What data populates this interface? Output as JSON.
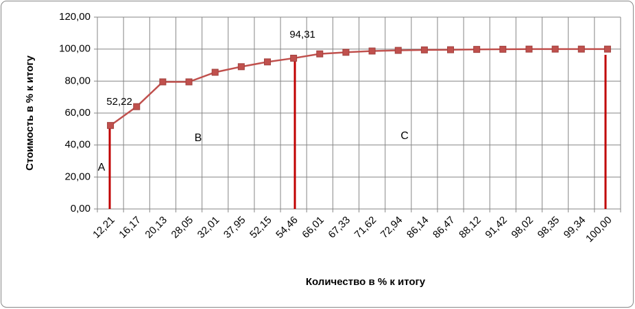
{
  "chart_data": {
    "type": "line",
    "x_label": "Количество в % к итогу",
    "y_label": "Стоимость в % к итогу",
    "categories": [
      "12,21",
      "16,17",
      "20,13",
      "28,05",
      "32,01",
      "37,95",
      "52,15",
      "54,46",
      "66,01",
      "67,33",
      "71,62",
      "72,94",
      "86,14",
      "86,47",
      "88,12",
      "91,42",
      "98,02",
      "98,35",
      "99,34",
      "100,00"
    ],
    "values": [
      52.22,
      64,
      79.5,
      79.5,
      85.5,
      89,
      92,
      94.31,
      97,
      98,
      98.8,
      99.2,
      99.5,
      99.6,
      99.8,
      99.9,
      100,
      100,
      100,
      100
    ],
    "value_labels": [
      "52,22",
      null,
      null,
      null,
      null,
      null,
      null,
      "94,31",
      null,
      null,
      null,
      null,
      null,
      null,
      null,
      null,
      null,
      null,
      null,
      null
    ],
    "color": "#c0504d",
    "ylim": [
      0,
      120
    ],
    "yticks": [
      {
        "value": 0,
        "label": "0,00"
      },
      {
        "value": 20,
        "label": "20,00"
      },
      {
        "value": 40,
        "label": "40,00"
      },
      {
        "value": 60,
        "label": "60,00"
      },
      {
        "value": 80,
        "label": "80,00"
      },
      {
        "value": 100,
        "label": "100,00"
      },
      {
        "value": 120,
        "label": "120,00"
      }
    ],
    "grid": true,
    "annotations": [
      "A",
      "B",
      "C"
    ]
  }
}
